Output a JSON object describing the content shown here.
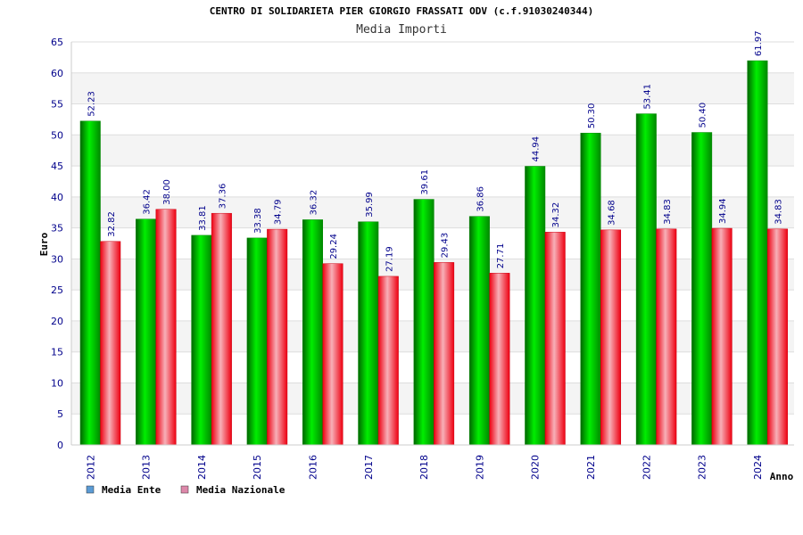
{
  "chart_data": {
    "type": "bar",
    "title": "CENTRO DI SOLIDARIETA PIER GIORGIO FRASSATI ODV (c.f.91030240344)",
    "subtitle": "Media Importi",
    "xlabel": "Anno",
    "ylabel": "Euro",
    "ylim": [
      0,
      65
    ],
    "ytick_step": 5,
    "grid": true,
    "legend_position": "bottom-left",
    "categories": [
      "2012",
      "2013",
      "2014",
      "2015",
      "2016",
      "2017",
      "2018",
      "2019",
      "2020",
      "2021",
      "2022",
      "2023",
      "2024"
    ],
    "series": [
      {
        "name": "Media Ente",
        "color": "#00cc00",
        "legend_color": "#5b9bd5",
        "values": [
          52.23,
          36.42,
          33.81,
          33.38,
          36.32,
          35.99,
          39.61,
          36.86,
          44.94,
          50.3,
          53.41,
          50.4,
          61.97
        ],
        "labels": [
          "52.23",
          "36.42",
          "33.81",
          "33.38",
          "36.32",
          "35.99",
          "39.61",
          "36.86",
          "44.94",
          "50.30",
          "53.41",
          "50.40",
          "61.97"
        ]
      },
      {
        "name": "Media Nazionale",
        "color": "#ee2233",
        "legend_color": "#dd88aa",
        "values": [
          32.82,
          38.0,
          37.36,
          34.79,
          29.24,
          27.19,
          29.43,
          27.71,
          34.32,
          34.68,
          34.83,
          34.94,
          34.83
        ],
        "labels": [
          "32.82",
          "38.00",
          "37.36",
          "34.79",
          "29.24",
          "27.19",
          "29.43",
          "27.71",
          "34.32",
          "34.68",
          "34.83",
          "34.94",
          "34.83"
        ]
      }
    ]
  }
}
